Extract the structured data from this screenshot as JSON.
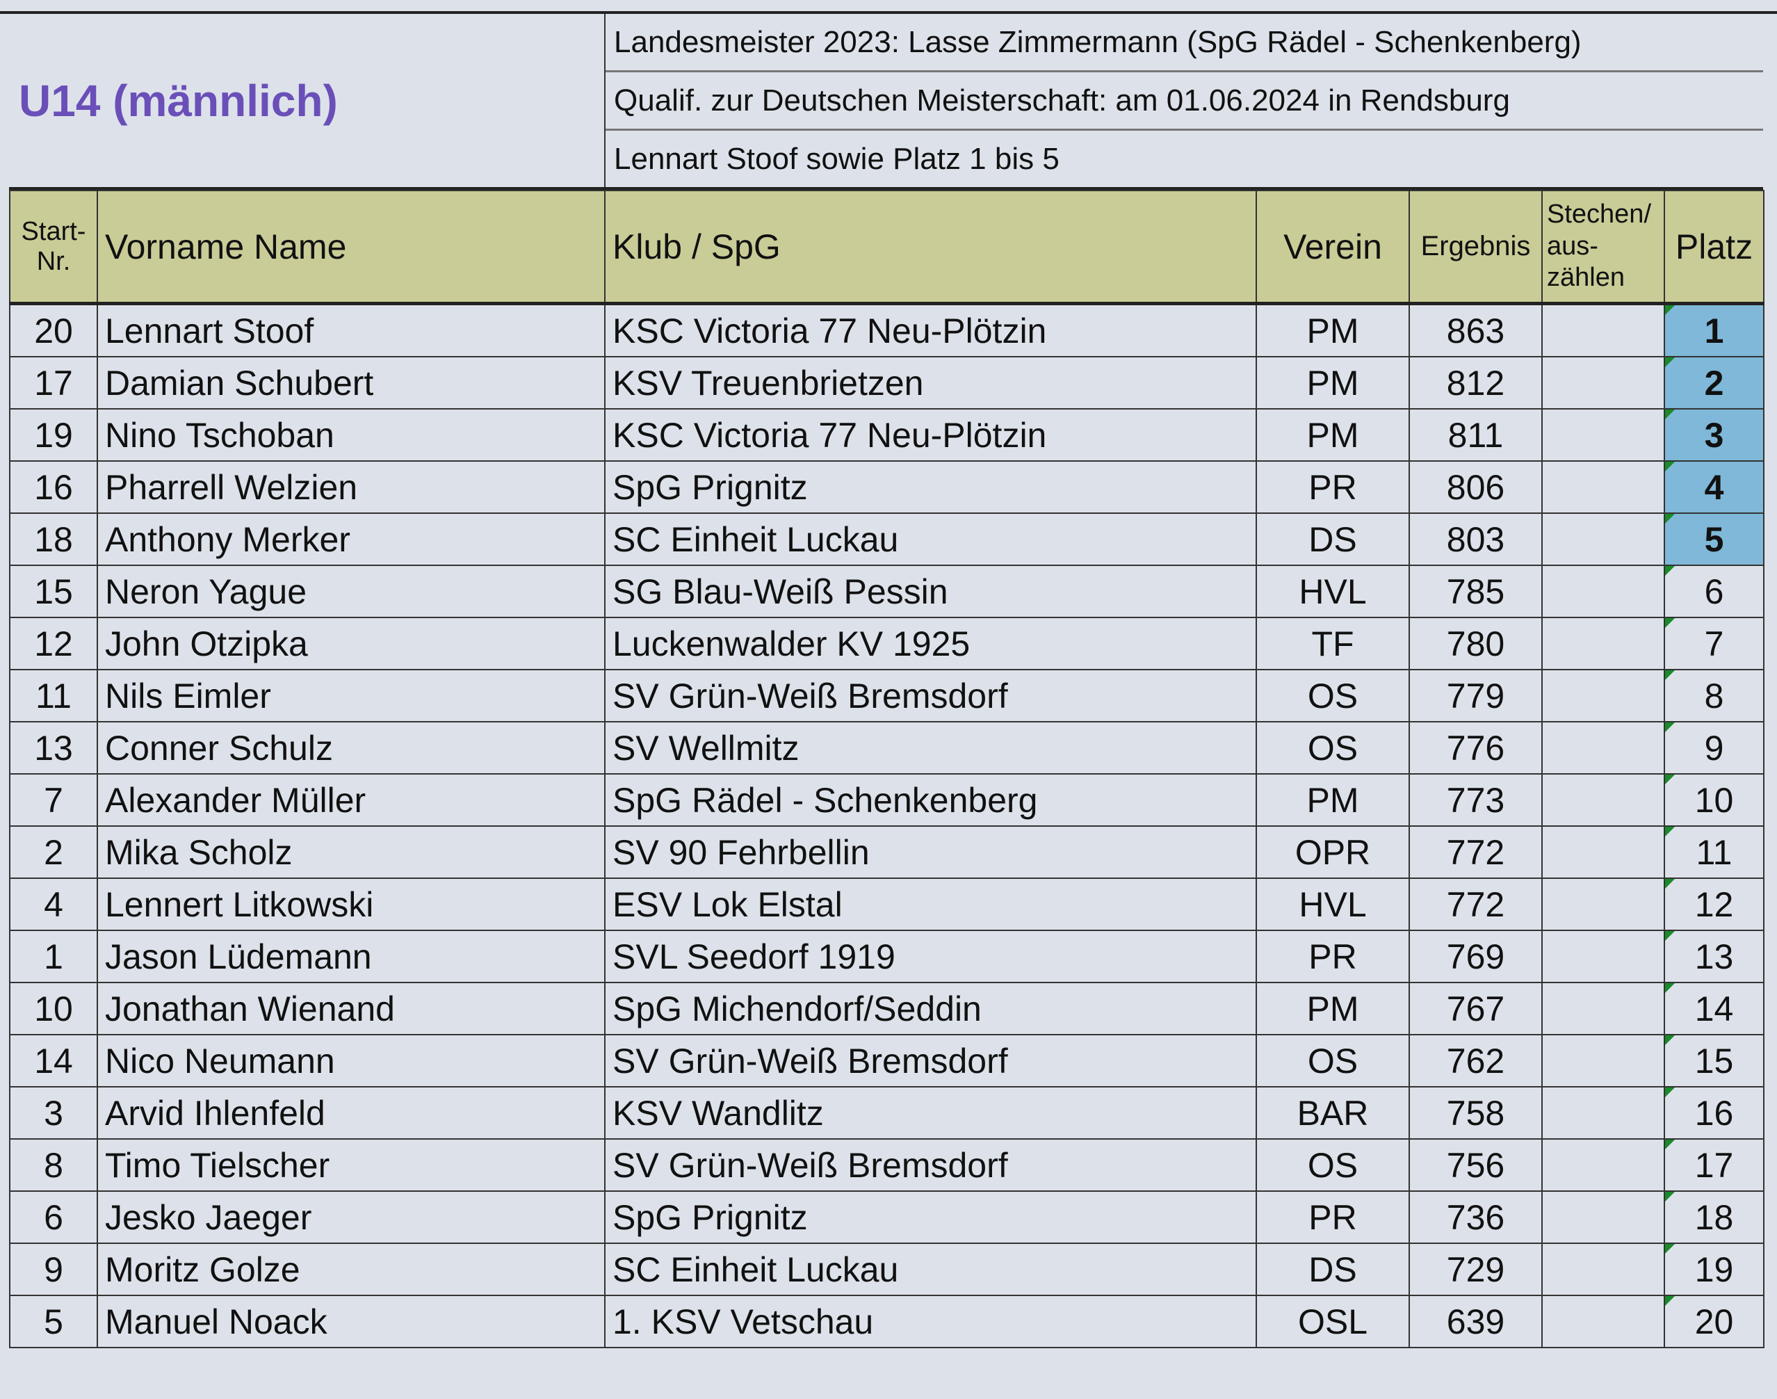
{
  "title": "U14 (männlich)",
  "info": [
    "Landesmeister 2023: Lasse Zimmermann (SpG Rädel - Schenkenberg)",
    "Qualif. zur Deutschen Meisterschaft: am 01.06.2024 in Rendsburg",
    "Lennart Stoof sowie Platz 1 bis 5"
  ],
  "columns": {
    "nr_line1": "Start-",
    "nr_line2": "Nr.",
    "name": "Vorname Name",
    "club": "Klub / SpG",
    "verein": "Verein",
    "ergebnis": "Ergebnis",
    "stechen_1": "Stechen/",
    "stechen_2": "aus-",
    "stechen_3": "zählen",
    "platz": "Platz"
  },
  "colors": {
    "header_bg": "#c9cc96",
    "qualified_bg": "#7fb8d8",
    "title": "#6a4fb8"
  },
  "rows": [
    {
      "nr": "20",
      "name": "Lennart Stoof",
      "club": "KSC Victoria 77 Neu-Plötzin",
      "verein": "PM",
      "ergebnis": "863",
      "platz": "1"
    },
    {
      "nr": "17",
      "name": "Damian Schubert",
      "club": "KSV Treuenbrietzen",
      "verein": "PM",
      "ergebnis": "812",
      "platz": "2"
    },
    {
      "nr": "19",
      "name": "Nino Tschoban",
      "club": "KSC Victoria 77 Neu-Plötzin",
      "verein": "PM",
      "ergebnis": "811",
      "platz": "3"
    },
    {
      "nr": "16",
      "name": "Pharrell Welzien",
      "club": "SpG Prignitz",
      "verein": "PR",
      "ergebnis": "806",
      "platz": "4"
    },
    {
      "nr": "18",
      "name": "Anthony Merker",
      "club": "SC Einheit Luckau",
      "verein": "DS",
      "ergebnis": "803",
      "platz": "5"
    },
    {
      "nr": "15",
      "name": "Neron Yague",
      "club": "SG Blau-Weiß Pessin",
      "verein": "HVL",
      "ergebnis": "785",
      "platz": "6"
    },
    {
      "nr": "12",
      "name": "John Otzipka",
      "club": "Luckenwalder KV 1925",
      "verein": "TF",
      "ergebnis": "780",
      "platz": "7"
    },
    {
      "nr": "11",
      "name": "Nils Eimler",
      "club": "SV Grün-Weiß Bremsdorf",
      "verein": "OS",
      "ergebnis": "779",
      "platz": "8"
    },
    {
      "nr": "13",
      "name": "Conner Schulz",
      "club": "SV Wellmitz",
      "verein": "OS",
      "ergebnis": "776",
      "platz": "9"
    },
    {
      "nr": "7",
      "name": "Alexander Müller",
      "club": "SpG Rädel - Schenkenberg",
      "verein": "PM",
      "ergebnis": "773",
      "platz": "10"
    },
    {
      "nr": "2",
      "name": "Mika Scholz",
      "club": "SV 90 Fehrbellin",
      "verein": "OPR",
      "ergebnis": "772",
      "platz": "11"
    },
    {
      "nr": "4",
      "name": "Lennert Litkowski",
      "club": "ESV Lok Elstal",
      "verein": "HVL",
      "ergebnis": "772",
      "platz": "12"
    },
    {
      "nr": "1",
      "name": "Jason Lüdemann",
      "club": "SVL Seedorf 1919",
      "verein": "PR",
      "ergebnis": "769",
      "platz": "13"
    },
    {
      "nr": "10",
      "name": "Jonathan Wienand",
      "club": "SpG Michendorf/Seddin",
      "verein": "PM",
      "ergebnis": "767",
      "platz": "14"
    },
    {
      "nr": "14",
      "name": "Nico Neumann",
      "club": "SV Grün-Weiß Bremsdorf",
      "verein": "OS",
      "ergebnis": "762",
      "platz": "15"
    },
    {
      "nr": "3",
      "name": "Arvid Ihlenfeld",
      "club": "KSV Wandlitz",
      "verein": "BAR",
      "ergebnis": "758",
      "platz": "16"
    },
    {
      "nr": "8",
      "name": "Timo Tielscher",
      "club": "SV Grün-Weiß Bremsdorf",
      "verein": "OS",
      "ergebnis": "756",
      "platz": "17"
    },
    {
      "nr": "6",
      "name": "Jesko Jaeger",
      "club": "SpG Prignitz",
      "verein": "PR",
      "ergebnis": "736",
      "platz": "18"
    },
    {
      "nr": "9",
      "name": "Moritz Golze",
      "club": "SC Einheit Luckau",
      "verein": "DS",
      "ergebnis": "729",
      "platz": "19"
    },
    {
      "nr": "5",
      "name": "Manuel Noack",
      "club": "1. KSV Vetschau",
      "verein": "OSL",
      "ergebnis": "639",
      "platz": "20"
    }
  ]
}
